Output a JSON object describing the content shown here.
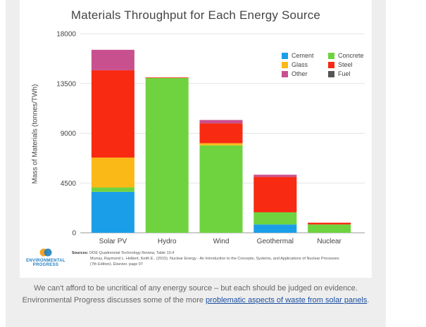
{
  "chart_data": {
    "type": "bar",
    "stacked": true,
    "title": "Materials Throughput for Each Energy Source",
    "ylabel": "Mass of Materials (tonnes/TWh)",
    "xlabel": "",
    "ylim": [
      0,
      18000
    ],
    "yticks": [
      "0",
      "4500",
      "9000",
      "13500",
      "18000"
    ],
    "ytick_values": [
      0,
      4500,
      9000,
      13500,
      18000
    ],
    "grid": true,
    "legend_position": "top-right",
    "categories": [
      "Solar PV",
      "Hydro",
      "Wind",
      "Geothermal",
      "Nuclear"
    ],
    "series": [
      {
        "name": "Cement",
        "color": "#1a9ee8",
        "values": [
          3700,
          0,
          0,
          750,
          0
        ]
      },
      {
        "name": "Concrete",
        "color": "#6fd33f",
        "values": [
          400,
          14000,
          7900,
          1100,
          750
        ]
      },
      {
        "name": "Glass",
        "color": "#fbb917",
        "values": [
          2700,
          0,
          200,
          0,
          0
        ]
      },
      {
        "name": "Steel",
        "color": "#f82a12",
        "values": [
          7900,
          50,
          1800,
          3200,
          160
        ]
      },
      {
        "name": "Other",
        "color": "#c9508f",
        "values": [
          1850,
          0,
          300,
          200,
          0
        ]
      },
      {
        "name": "Fuel",
        "color": "#555555",
        "values": [
          0,
          0,
          0,
          0,
          0
        ]
      }
    ]
  },
  "legend": [
    {
      "label": "Cement",
      "color": "#1a9ee8"
    },
    {
      "label": "Concrete",
      "color": "#6fd33f"
    },
    {
      "label": "Glass",
      "color": "#fbb917"
    },
    {
      "label": "Steel",
      "color": "#f82a12"
    },
    {
      "label": "Other",
      "color": "#c9508f"
    },
    {
      "label": "Fuel",
      "color": "#555555"
    }
  ],
  "sources": {
    "heading": "Sources:",
    "line1": "DOE Quadrennial Technology Review, Table 10.4",
    "line2": "Murray, Raymond L. Holbert, Keith E.. (2015). Nuclear Energy - An Introduction to the Concepts, Systems, and Applications of Nuclear Processes",
    "line3": "(7th Edition). Elsevier. page 97"
  },
  "logo": {
    "line1": "ENVIRONMENTAL",
    "line2": "PROGRESS"
  },
  "caption": {
    "text": "We can't afford to be uncritical of any energy source – but each should be judged on evidence. Environmental Progress discusses some of the more ",
    "link": "problematic aspects of waste from solar panels",
    "end": "."
  }
}
